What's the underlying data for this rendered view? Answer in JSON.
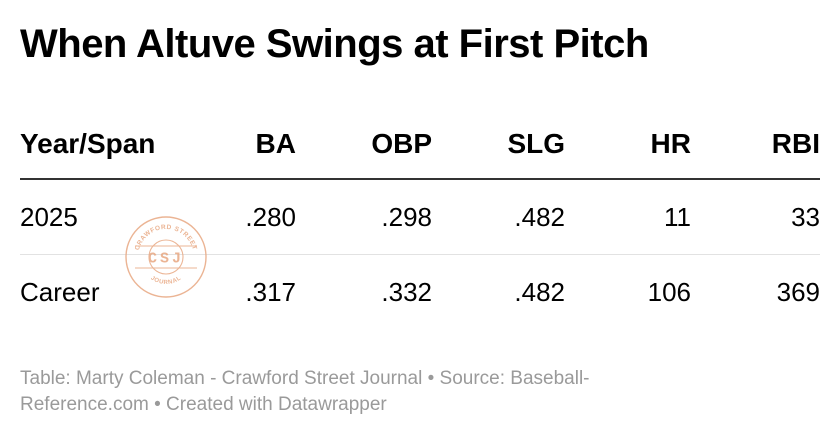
{
  "chart_data": {
    "type": "table",
    "title": "When Altuve Swings at First Pitch",
    "columns": [
      "Year/Span",
      "BA",
      "OBP",
      "SLG",
      "HR",
      "RBI"
    ],
    "rows": [
      {
        "span": "2025",
        "ba": ".280",
        "obp": ".298",
        "slg": ".482",
        "hr": "11",
        "rbi": "33"
      },
      {
        "span": "Career",
        "ba": ".317",
        "obp": ".332",
        "slg": ".482",
        "hr": "106",
        "rbi": "369"
      }
    ],
    "footer_line1": "Table: Marty Coleman - Crawford Street Journal • Source: Baseball-",
    "footer_line2": "Reference.com • Created with Datawrapper"
  },
  "watermark": {
    "top_text": "CRAWFORD STREET",
    "center_text": "CSJ",
    "bottom_text": "JOURNAL",
    "color": "#e8a882"
  }
}
